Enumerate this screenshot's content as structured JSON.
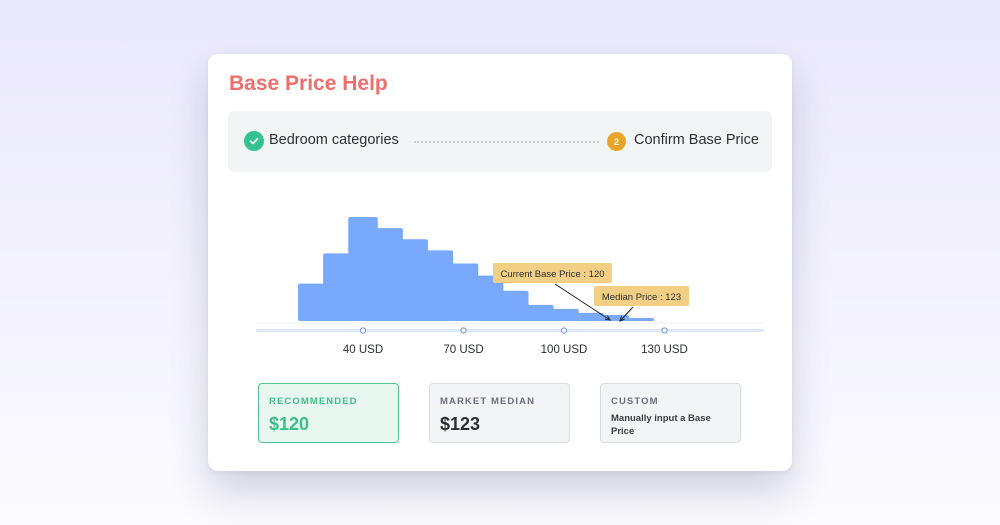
{
  "card": {
    "title": "Base Price Help"
  },
  "stepper": {
    "steps": [
      {
        "label": "Bedroom categories",
        "status": "complete",
        "icon": "check-icon"
      },
      {
        "label": "Confirm Base Price",
        "status": "current",
        "number": "2"
      }
    ]
  },
  "colors": {
    "title": "#ef6f6c",
    "bar": "#78a9fb",
    "complete": "#34c38f",
    "current": "#eaa526",
    "callout": "#f2cf84",
    "recommended": "#3cbf86"
  },
  "chart_data": {
    "type": "bar",
    "unit": "USD",
    "bins": [
      {
        "x": 25,
        "count": 37
      },
      {
        "x": 32.5,
        "count": 67
      },
      {
        "x": 40,
        "count": 103
      },
      {
        "x": 47.5,
        "count": 92
      },
      {
        "x": 55,
        "count": 81
      },
      {
        "x": 62.5,
        "count": 70
      },
      {
        "x": 70,
        "count": 57
      },
      {
        "x": 77.5,
        "count": 45
      },
      {
        "x": 85,
        "count": 30
      },
      {
        "x": 92.5,
        "count": 16
      },
      {
        "x": 100,
        "count": 12
      },
      {
        "x": 107.5,
        "count": 8
      },
      {
        "x": 115,
        "count": 6
      },
      {
        "x": 122.5,
        "count": 3
      }
    ],
    "x_ticks": [
      {
        "value": 40,
        "label": "40 USD"
      },
      {
        "value": 70,
        "label": "70 USD"
      },
      {
        "value": 100,
        "label": "100 USD"
      },
      {
        "value": 130,
        "label": "130 USD"
      }
    ],
    "annotations": [
      {
        "label": "Current Base Price : 120",
        "value": 120
      },
      {
        "label": "Median Price : 123",
        "value": 123
      }
    ]
  },
  "price_options": [
    {
      "caption": "RECOMMENDED",
      "value": "$120",
      "selected": true
    },
    {
      "caption": "MARKET MEDIAN",
      "value": "$123",
      "selected": false
    },
    {
      "caption": "CUSTOM",
      "note": "Manually input a Base Price",
      "selected": false
    }
  ]
}
